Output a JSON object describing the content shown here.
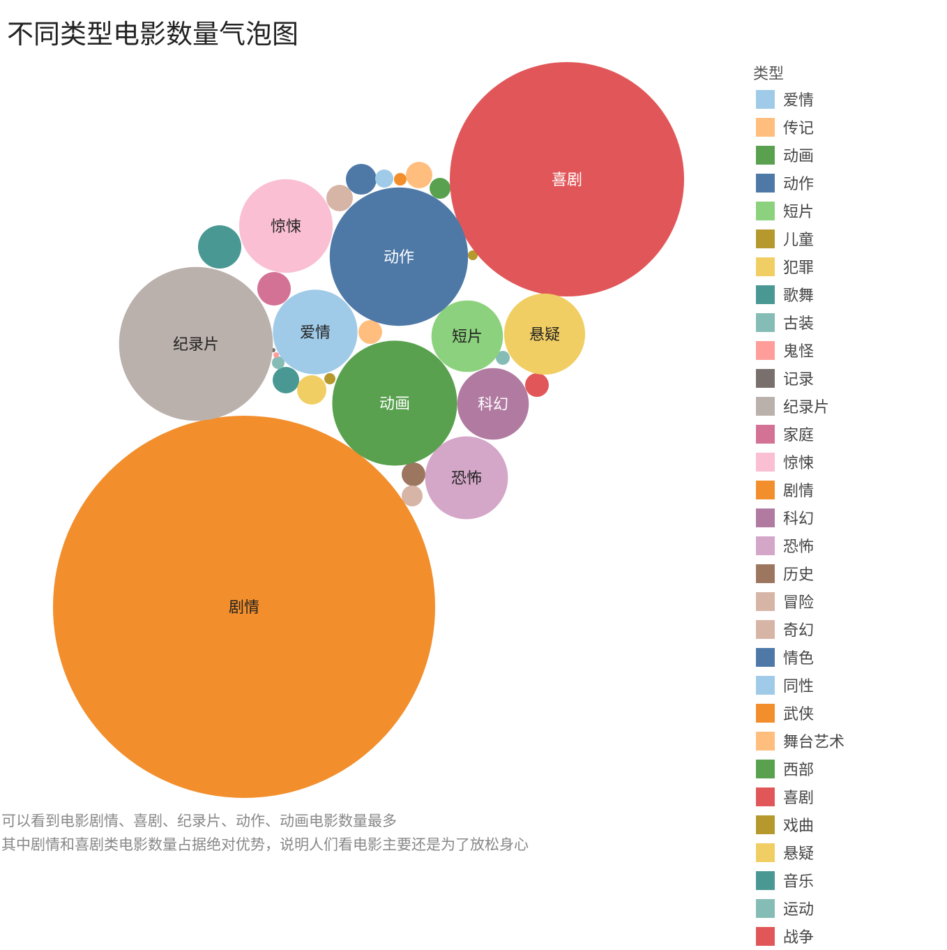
{
  "chart_data": {
    "type": "bubble",
    "title": "不同类型电影数量气泡图",
    "legend_title": "类型",
    "legend_position": "right",
    "note_lines": [
      "可以看到电影剧情、喜剧、纪录片、动作、动画电影数量最多",
      "其中剧情和喜剧类电影数量占据绝对优势，说明人们看电影主要还是为了放松身心"
    ],
    "legend": [
      {
        "name": "爱情",
        "color": "#a0cbe8"
      },
      {
        "name": "传记",
        "color": "#ffbe7d"
      },
      {
        "name": "动画",
        "color": "#59a14f"
      },
      {
        "name": "动作",
        "color": "#4e79a7"
      },
      {
        "name": "短片",
        "color": "#8cd17d"
      },
      {
        "name": "儿童",
        "color": "#b6992d"
      },
      {
        "name": "犯罪",
        "color": "#f1ce63"
      },
      {
        "name": "歌舞",
        "color": "#499894"
      },
      {
        "name": "古装",
        "color": "#86bcb6"
      },
      {
        "name": "鬼怪",
        "color": "#ff9d9a"
      },
      {
        "name": "记录",
        "color": "#79706e"
      },
      {
        "name": "纪录片",
        "color": "#bab0ac"
      },
      {
        "name": "家庭",
        "color": "#d37295"
      },
      {
        "name": "惊悚",
        "color": "#fabfd2"
      },
      {
        "name": "剧情",
        "color": "#f28e2b"
      },
      {
        "name": "科幻",
        "color": "#b07aa1"
      },
      {
        "name": "恐怖",
        "color": "#d4a6c8"
      },
      {
        "name": "历史",
        "color": "#9d7660"
      },
      {
        "name": "冒险",
        "color": "#d7b5a6"
      },
      {
        "name": "奇幻",
        "color": "#d7b5a6"
      },
      {
        "name": "情色",
        "color": "#4e79a7"
      },
      {
        "name": "同性",
        "color": "#a0cbe8"
      },
      {
        "name": "武侠",
        "color": "#f28e2b"
      },
      {
        "name": "舞台艺术",
        "color": "#ffbe7d"
      },
      {
        "name": "西部",
        "color": "#59a14f"
      },
      {
        "name": "喜剧",
        "color": "#e15759"
      },
      {
        "name": "戏曲",
        "color": "#b6992d"
      },
      {
        "name": "悬疑",
        "color": "#f1ce63"
      },
      {
        "name": "音乐",
        "color": "#499894"
      },
      {
        "name": "运动",
        "color": "#86bcb6"
      },
      {
        "name": "战争",
        "color": "#e15759"
      }
    ],
    "labeled_bubbles": [
      {
        "name": "剧情",
        "relative_size": 1.0,
        "color": "#f28e2b"
      },
      {
        "name": "喜剧",
        "relative_size": 0.376,
        "color": "#e15759"
      },
      {
        "name": "纪录片",
        "relative_size": 0.162,
        "color": "#bab0ac"
      },
      {
        "name": "动作",
        "relative_size": 0.131,
        "color": "#4e79a7"
      },
      {
        "name": "动画",
        "relative_size": 0.107,
        "color": "#59a14f"
      },
      {
        "name": "惊悚",
        "relative_size": 0.06,
        "color": "#fabfd2"
      },
      {
        "name": "爱情",
        "relative_size": 0.049,
        "color": "#a0cbe8"
      },
      {
        "name": "悬疑",
        "relative_size": 0.045,
        "color": "#f1ce63"
      },
      {
        "name": "恐怖",
        "relative_size": 0.047,
        "color": "#d4a6c8"
      },
      {
        "name": "科幻",
        "relative_size": 0.035,
        "color": "#b07aa1"
      },
      {
        "name": "短片",
        "relative_size": 0.035,
        "color": "#8cd17d"
      }
    ]
  }
}
